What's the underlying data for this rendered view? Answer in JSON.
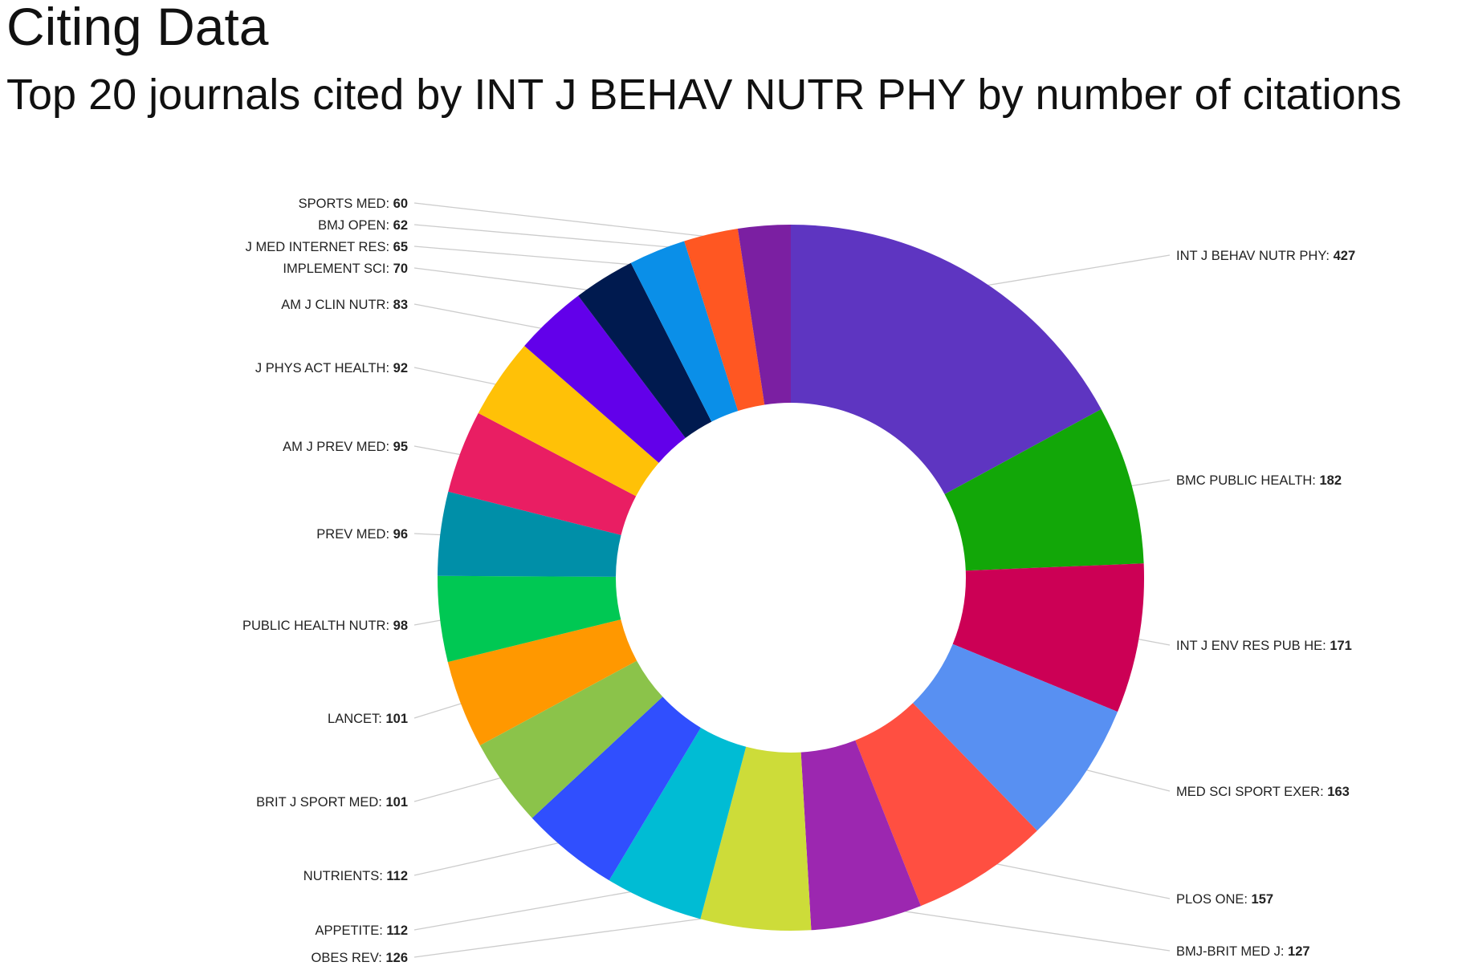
{
  "header": {
    "title": "Citing Data",
    "subtitle": "Top 20 journals cited by INT J BEHAV NUTR PHY by number of citations"
  },
  "chart_data": {
    "type": "pie",
    "variant": "donut",
    "title": "Citing Data",
    "subtitle": "Top 20 journals cited by INT J BEHAV NUTR PHY by number of citations",
    "slices": [
      {
        "label": "INT J BEHAV NUTR PHY:",
        "value": 427,
        "color": "#5e35c1"
      },
      {
        "label": "BMC PUBLIC HEALTH:",
        "value": 182,
        "color": "#12a708"
      },
      {
        "label": "INT J ENV RES PUB HE:",
        "value": 171,
        "color": "#cc0055"
      },
      {
        "label": "MED SCI SPORT EXER:",
        "value": 163,
        "color": "#5890f2"
      },
      {
        "label": "PLOS ONE:",
        "value": 157,
        "color": "#ff4f41"
      },
      {
        "label": "BMJ-BRIT MED J:",
        "value": 127,
        "color": "#9c27b0"
      },
      {
        "label": "OBES REV:",
        "value": 126,
        "color": "#cddc39"
      },
      {
        "label": "APPETITE:",
        "value": 112,
        "color": "#00bcd4"
      },
      {
        "label": "NUTRIENTS:",
        "value": 112,
        "color": "#304ffe"
      },
      {
        "label": "BRIT J SPORT MED:",
        "value": 101,
        "color": "#8bc34a"
      },
      {
        "label": "LANCET:",
        "value": 101,
        "color": "#ff9800"
      },
      {
        "label": "PUBLIC HEALTH NUTR:",
        "value": 98,
        "color": "#00c853"
      },
      {
        "label": "PREV MED:",
        "value": 96,
        "color": "#008fa8"
      },
      {
        "label": "AM J PREV MED:",
        "value": 95,
        "color": "#e91e63"
      },
      {
        "label": "J PHYS ACT HEALTH:",
        "value": 92,
        "color": "#ffc107"
      },
      {
        "label": "AM J CLIN NUTR:",
        "value": 83,
        "color": "#6200ea"
      },
      {
        "label": "IMPLEMENT SCI:",
        "value": 70,
        "color": "#001a4f"
      },
      {
        "label": "J MED INTERNET RES:",
        "value": 65,
        "color": "#0a8fe8"
      },
      {
        "label": "BMJ OPEN:",
        "value": 62,
        "color": "#ff5722"
      },
      {
        "label": "SPORTS MED:",
        "value": 60,
        "color": "#7b1fa2"
      }
    ],
    "legend": "none",
    "labels": "outside with leader lines"
  }
}
